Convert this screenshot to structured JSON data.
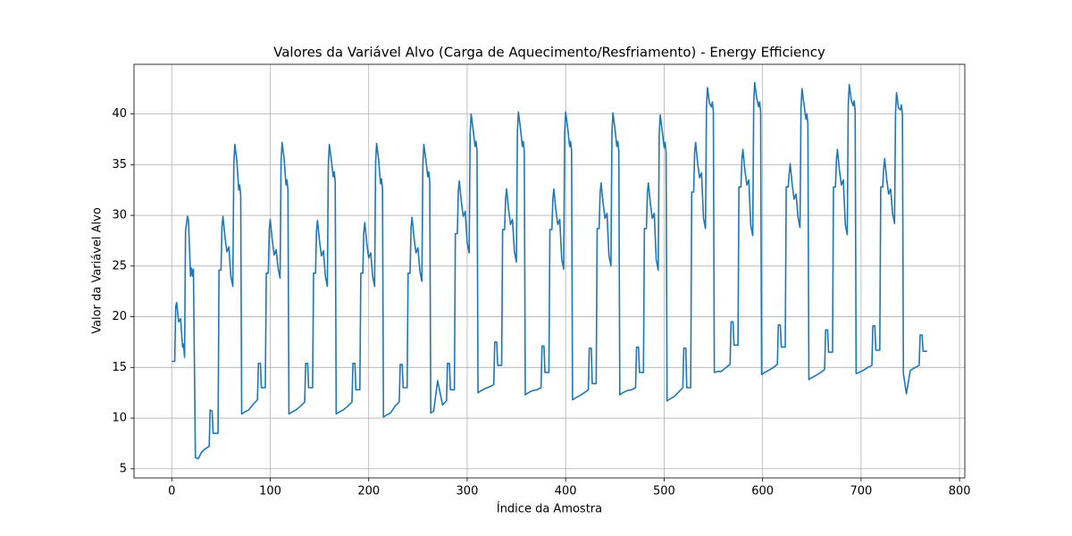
{
  "chart_data": {
    "type": "line",
    "title": "Valores da Variável Alvo (Carga de Aquecimento/Resfriamento) - Energy Efficiency",
    "xlabel": "Índice da Amostra",
    "ylabel": "Valor da Variável Alvo",
    "color": "#1f77b4",
    "grid": true,
    "xlim": [
      -38.35,
      805.35
    ],
    "ylim": [
      4.1,
      44.9
    ],
    "xticks": [
      0,
      100,
      200,
      300,
      400,
      500,
      600,
      700,
      800
    ],
    "yticks": [
      5,
      10,
      15,
      20,
      25,
      30,
      35,
      40
    ],
    "x": [
      0,
      3,
      4,
      5,
      7,
      9,
      11,
      12,
      13,
      14,
      16,
      17,
      19,
      20,
      21,
      22,
      24,
      27,
      30,
      33,
      36,
      38,
      39,
      41,
      42,
      45,
      47,
      48,
      50,
      51,
      52,
      54,
      56,
      58,
      60,
      62,
      63,
      64,
      66,
      68,
      69,
      70,
      71,
      74,
      78,
      83,
      87,
      88,
      90,
      91,
      95,
      96,
      98,
      99,
      100,
      102,
      104,
      106,
      108,
      110,
      111,
      112,
      114,
      116,
      117,
      118,
      119,
      122,
      126,
      131,
      135,
      136,
      138,
      139,
      143,
      144,
      146,
      147,
      148,
      150,
      152,
      154,
      156,
      158,
      159,
      160,
      162,
      164,
      165,
      166,
      167,
      170,
      174,
      179,
      183,
      184,
      186,
      187,
      191,
      192,
      194,
      195,
      196,
      198,
      200,
      202,
      204,
      206,
      207,
      208,
      210,
      212,
      213,
      214,
      215,
      218,
      222,
      227,
      231,
      232,
      234,
      235,
      239,
      240,
      242,
      243,
      244,
      246,
      248,
      250,
      252,
      254,
      255,
      256,
      258,
      260,
      261,
      262,
      263,
      266,
      270,
      275,
      279,
      280,
      282,
      283,
      287,
      288,
      290,
      291,
      292,
      294,
      296,
      298,
      300,
      302,
      303,
      304,
      306,
      308,
      309,
      310,
      311,
      314,
      318,
      323,
      327,
      328,
      330,
      331,
      335,
      336,
      338,
      339,
      340,
      342,
      344,
      346,
      348,
      350,
      351,
      352,
      354,
      356,
      357,
      358,
      359,
      362,
      366,
      371,
      375,
      376,
      378,
      379,
      383,
      384,
      386,
      387,
      388,
      390,
      392,
      394,
      396,
      398,
      399,
      400,
      402,
      404,
      405,
      406,
      407,
      410,
      414,
      419,
      423,
      424,
      426,
      427,
      431,
      432,
      434,
      435,
      436,
      438,
      440,
      442,
      444,
      446,
      447,
      448,
      450,
      452,
      453,
      454,
      455,
      458,
      462,
      467,
      471,
      472,
      474,
      475,
      479,
      480,
      482,
      483,
      484,
      486,
      488,
      490,
      492,
      494,
      495,
      496,
      498,
      500,
      501,
      502,
      503,
      506,
      510,
      515,
      519,
      520,
      522,
      523,
      527,
      528,
      530,
      531,
      532,
      534,
      536,
      538,
      540,
      542,
      543,
      544,
      546,
      548,
      549,
      550,
      551,
      554,
      558,
      563,
      567,
      568,
      570,
      571,
      575,
      576,
      578,
      579,
      580,
      582,
      584,
      586,
      588,
      590,
      591,
      592,
      594,
      596,
      597,
      598,
      599,
      602,
      606,
      611,
      615,
      616,
      618,
      619,
      623,
      624,
      626,
      627,
      628,
      630,
      632,
      634,
      636,
      638,
      639,
      640,
      642,
      644,
      645,
      646,
      647,
      650,
      654,
      659,
      663,
      664,
      666,
      667,
      671,
      672,
      674,
      675,
      676,
      678,
      680,
      682,
      684,
      686,
      687,
      688,
      690,
      692,
      693,
      694,
      695,
      698,
      702,
      707,
      711,
      712,
      714,
      715,
      719,
      720,
      722,
      723,
      724,
      726,
      728,
      730,
      732,
      734,
      735,
      736,
      738,
      740,
      741,
      742,
      743,
      746,
      750,
      755,
      759,
      760,
      762,
      763,
      767
    ],
    "values": [
      15.6,
      15.6,
      21,
      21.4,
      19.5,
      19.8,
      17,
      17.3,
      16,
      28.5,
      29.9,
      29.5,
      24,
      24.8,
      24,
      24.7,
      6.1,
      6,
      6.6,
      6.9,
      7.1,
      7.2,
      10.8,
      10.7,
      8.5,
      8.5,
      8.5,
      24.6,
      24.6,
      28.9,
      29.9,
      27.9,
      26.4,
      26.9,
      24,
      23,
      35,
      37,
      35.5,
      32.5,
      33,
      32,
      10.4,
      10.6,
      10.8,
      11.4,
      11.8,
      15.4,
      15.4,
      13,
      13,
      24.3,
      24.3,
      28.6,
      29.6,
      27.6,
      26.1,
      26.6,
      24.8,
      23.8,
      35.2,
      37.2,
      35.7,
      33,
      33.5,
      32.5,
      10.4,
      10.6,
      10.8,
      11.2,
      11.6,
      15.4,
      15.4,
      13,
      13,
      24.3,
      24.3,
      28.5,
      29.5,
      27.5,
      26,
      26.5,
      24,
      23,
      35,
      37,
      35.5,
      33.8,
      34.3,
      33.3,
      10.4,
      10.6,
      10.8,
      11.2,
      11.6,
      15.4,
      15.4,
      12.8,
      12.8,
      24.3,
      24.3,
      28.3,
      29.3,
      27.3,
      25.8,
      26.3,
      24,
      23,
      35.1,
      37.1,
      35.6,
      33.1,
      33.6,
      32.6,
      10.1,
      10.3,
      10.5,
      11.2,
      11.6,
      15.3,
      15.3,
      13,
      13,
      24.3,
      24.3,
      28.8,
      29.8,
      27.8,
      26.3,
      26.8,
      24.5,
      23.5,
      35,
      37,
      35.5,
      33.8,
      34.3,
      33.3,
      10.5,
      10.7,
      13.7,
      11.3,
      11.7,
      15.4,
      15.4,
      12.8,
      12.8,
      28.2,
      28.2,
      32.4,
      33.4,
      31.4,
      29.9,
      30.4,
      27.3,
      26.3,
      38,
      40,
      38.5,
      36.8,
      37.3,
      36.3,
      12.5,
      12.7,
      12.9,
      13.1,
      13.3,
      17.5,
      17.5,
      15.2,
      15.2,
      28.6,
      28.6,
      31.6,
      32.6,
      30.6,
      29.1,
      29.6,
      26.4,
      25.4,
      38.2,
      40.2,
      38.7,
      36.8,
      37.3,
      36.3,
      12.3,
      12.5,
      12.7,
      12.8,
      13,
      17.1,
      17.1,
      14.5,
      14.5,
      28.6,
      28.6,
      31.6,
      32.6,
      30.6,
      29.1,
      29.6,
      25.7,
      24.7,
      38.2,
      40.2,
      38.7,
      36.8,
      37.3,
      36.3,
      11.8,
      12,
      12.2,
      12.5,
      12.8,
      16.9,
      16.9,
      13.4,
      13.4,
      28.7,
      28.7,
      32.2,
      33.2,
      31.2,
      29.7,
      30.2,
      26,
      25,
      38.1,
      40.1,
      38.6,
      36.8,
      37.3,
      36.3,
      12.3,
      12.5,
      12.7,
      12.8,
      13,
      17,
      17,
      14.5,
      14.5,
      28.7,
      28.7,
      32.2,
      33.2,
      31.2,
      29.7,
      30.2,
      25.6,
      24.6,
      37.9,
      39.9,
      38.4,
      36.7,
      37.2,
      36.2,
      11.7,
      11.9,
      12.1,
      12.6,
      13,
      16.9,
      16.9,
      13,
      13,
      32.3,
      32.3,
      36.2,
      37.2,
      35.2,
      33.7,
      34.2,
      29.7,
      28.7,
      40.6,
      42.6,
      41.1,
      40.7,
      41.2,
      40.2,
      14.5,
      14.6,
      14.6,
      15,
      15.3,
      19.5,
      19.5,
      17.2,
      17.2,
      32.8,
      32.8,
      35.5,
      36.5,
      34.5,
      33,
      33.5,
      29,
      28,
      41.1,
      43.1,
      41.6,
      40.7,
      41.2,
      40.2,
      14.3,
      14.5,
      14.7,
      15,
      15.3,
      19.2,
      19.2,
      17,
      17,
      32.8,
      32.8,
      34.1,
      35.1,
      33.1,
      31.6,
      32.1,
      29.8,
      28.8,
      40.5,
      42.5,
      41,
      39.5,
      40,
      39,
      13.8,
      14,
      14.2,
      14.5,
      14.8,
      18.7,
      18.7,
      16.5,
      16.5,
      32.8,
      32.8,
      35.5,
      36.5,
      34.5,
      33,
      33.5,
      29.1,
      28.1,
      40.9,
      42.9,
      41.4,
      40.8,
      41.3,
      40.3,
      14.4,
      14.5,
      14.7,
      15,
      15.2,
      19.1,
      19.1,
      16.7,
      16.7,
      32.8,
      32.8,
      34.6,
      35.6,
      33.6,
      32.1,
      32.6,
      30.2,
      29.2,
      40.1,
      42.1,
      40.6,
      40.4,
      40.9,
      39.9,
      14.4,
      12.4,
      14.7,
      15,
      15.2,
      18.2,
      18.2,
      16.6,
      16.6
    ]
  }
}
